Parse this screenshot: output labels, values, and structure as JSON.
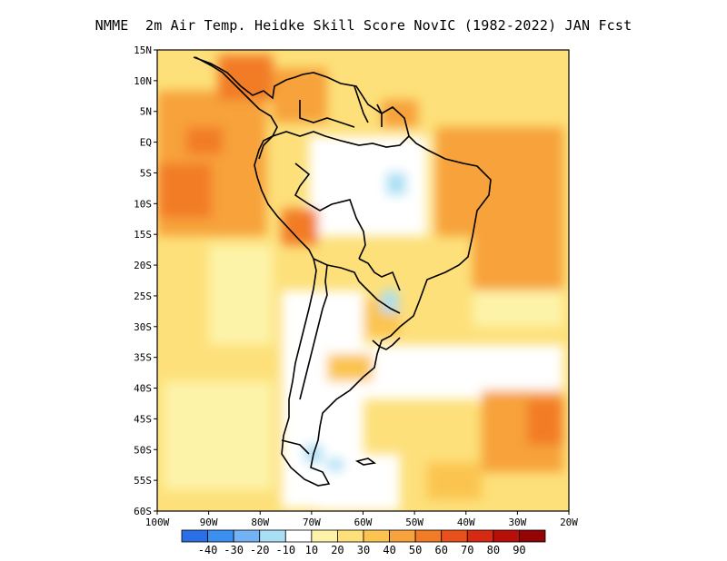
{
  "title": "NMME  2m Air Temp. Heidke Skill Score NovIC (1982-2022) JAN Fcst",
  "map": {
    "lat_labels": [
      "15N",
      "10N",
      "5N",
      "EQ",
      "5S",
      "10S",
      "15S",
      "20S",
      "25S",
      "30S",
      "35S",
      "40S",
      "45S",
      "50S",
      "55S",
      "60S"
    ],
    "lon_labels": [
      "100W",
      "90W",
      "80W",
      "70W",
      "60W",
      "50W",
      "40W",
      "30W",
      "20W"
    ],
    "extent": {
      "lon_min": -100,
      "lon_max": -20,
      "lat_min": -60,
      "lat_max": 15
    }
  },
  "colorbar": {
    "labels": [
      "-40",
      "-30",
      "-20",
      "-10",
      "10",
      "20",
      "30",
      "40",
      "50",
      "60",
      "70",
      "80",
      "90"
    ],
    "colors": [
      "#2a6fe6",
      "#3b8ff0",
      "#72b2f5",
      "#a9dff5",
      "#ffffff",
      "#fdf3a8",
      "#fde07a",
      "#fbc450",
      "#f7a23a",
      "#f27b25",
      "#e8501c",
      "#d72a12",
      "#b80f0a",
      "#930505"
    ]
  }
}
